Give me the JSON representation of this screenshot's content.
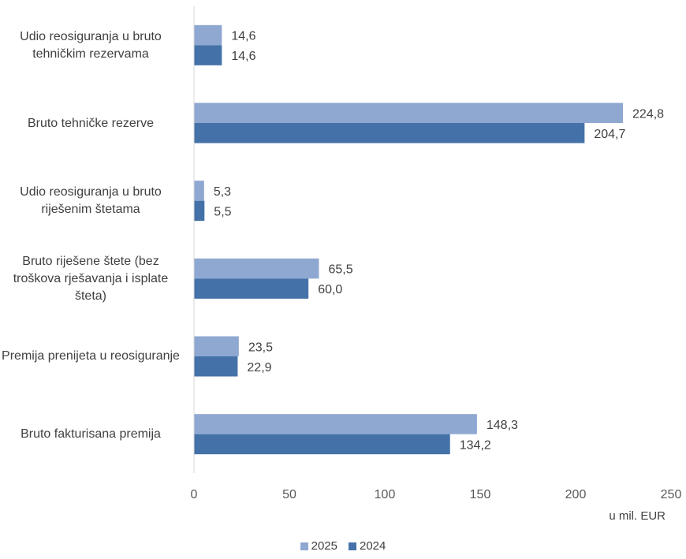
{
  "chart_data": {
    "type": "bar",
    "orientation": "horizontal",
    "categories": [
      "Udio reosiguranja u bruto tehničkim rezervama",
      "Bruto tehničke rezerve",
      "Udio reosiguranja u bruto riješenim štetama",
      "Bruto riješene štete (bez troškova rješavanja i isplate šteta)",
      "Premija prenijeta u reosiguranje",
      "Bruto fakturisana premija"
    ],
    "series": [
      {
        "name": "2025",
        "color": "#8FA8D2",
        "values": [
          14.6,
          224.8,
          5.3,
          65.5,
          23.5,
          148.3
        ],
        "labels": [
          "14,6",
          "224,8",
          "5,3",
          "65,5",
          "23,5",
          "148,3"
        ]
      },
      {
        "name": "2024",
        "color": "#4472A8",
        "values": [
          14.6,
          204.7,
          5.5,
          60.0,
          22.9,
          134.2
        ],
        "labels": [
          "14,6",
          "204,7",
          "5,5",
          "60,0",
          "22,9",
          "134,2"
        ]
      }
    ],
    "xlim": [
      0,
      250
    ],
    "xticks": [
      0,
      50,
      100,
      150,
      200,
      250
    ],
    "xtick_labels": [
      "0",
      "50",
      "100",
      "150",
      "200",
      "250"
    ],
    "xlabel": "u mil. EUR",
    "grid": false,
    "legend_position": "bottom"
  }
}
